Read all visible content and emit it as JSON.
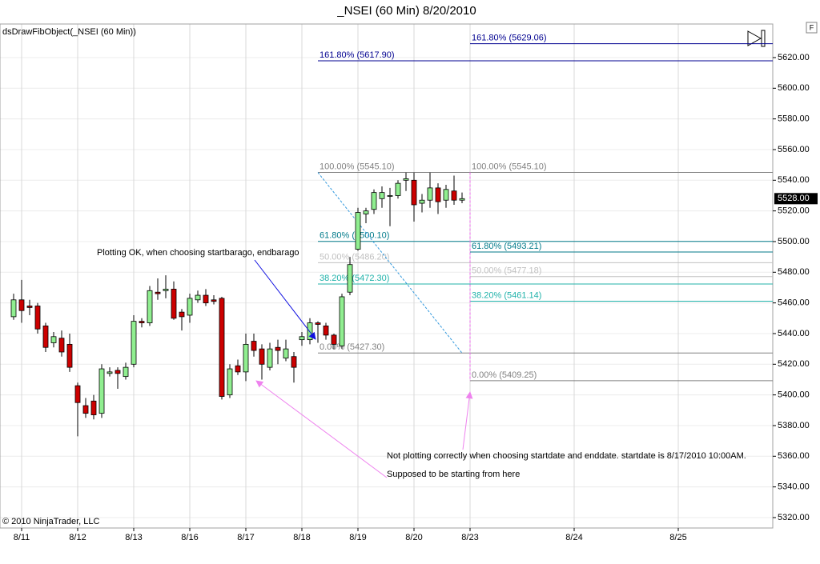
{
  "chart_data": {
    "type": "candlestick",
    "title": "_NSEI (60 Min)  8/20/2010",
    "indicator_label": "dsDrawFibObject(_NSEI (60 Min))",
    "copyright": "© 2010 NinjaTrader, LLC",
    "side_button": "F",
    "up_color": "#90ee90",
    "down_color": "#cc0000",
    "grid": true,
    "xlim": [
      -1.7,
      94.8
    ],
    "xticks": [
      {
        "value": 1,
        "label": "8/11"
      },
      {
        "value": 8,
        "label": "8/12"
      },
      {
        "value": 15,
        "label": "8/13"
      },
      {
        "value": 22,
        "label": "8/16"
      },
      {
        "value": 29,
        "label": "8/17"
      },
      {
        "value": 36,
        "label": "8/18"
      },
      {
        "value": 43,
        "label": "8/19"
      },
      {
        "value": 50,
        "label": "8/20"
      },
      {
        "value": 57,
        "label": "8/23"
      },
      {
        "value": 70,
        "label": "8/24"
      },
      {
        "value": 83,
        "label": "8/25"
      }
    ],
    "ylim": [
      5313.2,
      5641.9
    ],
    "yticks": [
      {
        "value": 5320,
        "label": "5320.00"
      },
      {
        "value": 5340,
        "label": "5340.00"
      },
      {
        "value": 5360,
        "label": "5360.00"
      },
      {
        "value": 5380,
        "label": "5380.00"
      },
      {
        "value": 5400,
        "label": "5400.00"
      },
      {
        "value": 5420,
        "label": "5420.00"
      },
      {
        "value": 5440,
        "label": "5440.00"
      },
      {
        "value": 5460,
        "label": "5460.00"
      },
      {
        "value": 5480,
        "label": "5480.00"
      },
      {
        "value": 5500,
        "label": "5500.00"
      },
      {
        "value": 5520,
        "label": "5520.00"
      },
      {
        "value": 5540,
        "label": "5540.00"
      },
      {
        "value": 5560,
        "label": "5560.00"
      },
      {
        "value": 5580,
        "label": "5580.00"
      },
      {
        "value": 5600,
        "label": "5600.00"
      },
      {
        "value": 5620,
        "label": "5620.00"
      }
    ],
    "last_price": {
      "value": 5528,
      "label": "5528.00"
    },
    "x": [
      0,
      1,
      2,
      3,
      4,
      5,
      6,
      7,
      8,
      9,
      10,
      11,
      12,
      13,
      14,
      15,
      16,
      17,
      18,
      19,
      20,
      21,
      22,
      23,
      24,
      25,
      26,
      27,
      28,
      29,
      30,
      31,
      32,
      33,
      34,
      35,
      36,
      37,
      38,
      39,
      40,
      41,
      42,
      43,
      44,
      45,
      46,
      47,
      48,
      49,
      50,
      51,
      52,
      53,
      54,
      55,
      56
    ],
    "open": [
      5451,
      5462,
      5458,
      5458,
      5445,
      5434,
      5437,
      5433,
      5406,
      5393,
      5396,
      5388,
      5414,
      5416,
      5412,
      5420,
      5448,
      5447,
      5467,
      5468,
      5469,
      5454,
      5452,
      5462,
      5465,
      5462,
      5463,
      5400,
      5419,
      5415,
      5435,
      5430,
      5418,
      5431,
      5424,
      5425,
      5436,
      5436,
      5447,
      5445,
      5439,
      5432,
      5467,
      5495,
      5518,
      5521,
      5528,
      5530,
      5530,
      5540,
      5540,
      5525,
      5527,
      5535,
      5527,
      5533,
      5527
    ],
    "high": [
      5466,
      5475,
      5462,
      5460,
      5447,
      5441,
      5442,
      5440,
      5408,
      5398,
      5400,
      5420,
      5418,
      5418,
      5421,
      5452,
      5450,
      5471,
      5476,
      5478,
      5474,
      5456,
      5466,
      5468,
      5469,
      5465,
      5464,
      5420,
      5423,
      5440,
      5440,
      5433,
      5434,
      5436,
      5436,
      5428,
      5441,
      5450,
      5448,
      5447,
      5440,
      5466,
      5490,
      5522,
      5522,
      5534,
      5536,
      5535,
      5540,
      5545,
      5545,
      5531,
      5545,
      5538,
      5537,
      5543,
      5532
    ],
    "low": [
      5449,
      5447,
      5452,
      5440,
      5428,
      5431,
      5425,
      5415,
      5373,
      5385,
      5384,
      5385,
      5412,
      5404,
      5410,
      5418,
      5444,
      5445,
      5462,
      5463,
      5449,
      5442,
      5447,
      5460,
      5458,
      5459,
      5397,
      5398,
      5413,
      5409,
      5425,
      5410,
      5416,
      5420,
      5422,
      5408,
      5432,
      5433,
      5434,
      5436,
      5430,
      5430,
      5465,
      5494,
      5512,
      5518,
      5522,
      5510,
      5528,
      5533,
      5513,
      5519,
      5522,
      5518,
      5522,
      5524,
      5525
    ],
    "close": [
      5462,
      5455,
      5457,
      5443,
      5431,
      5438,
      5428,
      5418,
      5395,
      5388,
      5387,
      5417,
      5415,
      5414,
      5418,
      5448,
      5447,
      5468,
      5466,
      5469,
      5450,
      5451,
      5463,
      5465,
      5460,
      5461,
      5399,
      5417,
      5415,
      5433,
      5429,
      5420,
      5430,
      5429,
      5430,
      5418,
      5438,
      5447,
      5446,
      5439,
      5433,
      5464,
      5485,
      5519,
      5520,
      5532,
      5532,
      5530,
      5538,
      5541,
      5524,
      5527,
      5535,
      5526,
      5534,
      5527,
      5528
    ],
    "fib_sets": [
      {
        "x_start": 38,
        "levels": [
          {
            "label": "161.80% (5617.90)",
            "value": 5617.9,
            "color": "#000090"
          },
          {
            "label": "100.00% (5545.10)",
            "value": 5545.1,
            "color": "#808080"
          },
          {
            "label": "61.80% (5500.10)",
            "value": 5500.1,
            "color": "#007a8a"
          },
          {
            "label": "50.00% (5486.20)",
            "value": 5486.2,
            "color": "#c0c0c0"
          },
          {
            "label": "38.20% (5472.30)",
            "value": 5472.3,
            "color": "#20b2aa"
          },
          {
            "label": "0.00% (5427.30)",
            "value": 5427.3,
            "color": "#808080"
          }
        ]
      },
      {
        "x_start": 57,
        "levels": [
          {
            "label": "161.80% (5629.06)",
            "value": 5629.06,
            "color": "#000090"
          },
          {
            "label": "100.00% (5545.10)",
            "value": 5545.1,
            "color": "#808080"
          },
          {
            "label": "61.80% (5493.21)",
            "value": 5493.21,
            "color": "#007a8a"
          },
          {
            "label": "50.00% (5477.18)",
            "value": 5477.18,
            "color": "#c0c0c0"
          },
          {
            "label": "38.20% (5461.14)",
            "value": 5461.14,
            "color": "#20b2aa"
          },
          {
            "label": "0.00% (5409.25)",
            "value": 5409.25,
            "color": "#808080"
          }
        ]
      }
    ],
    "annotations": [
      "Plotting OK, when choosing startbarago, endbarago",
      "Not plotting correctly when choosing startdate and enddate. startdate is 8/17/2010 10:00AM.",
      "Supposed to be starting from here"
    ]
  }
}
